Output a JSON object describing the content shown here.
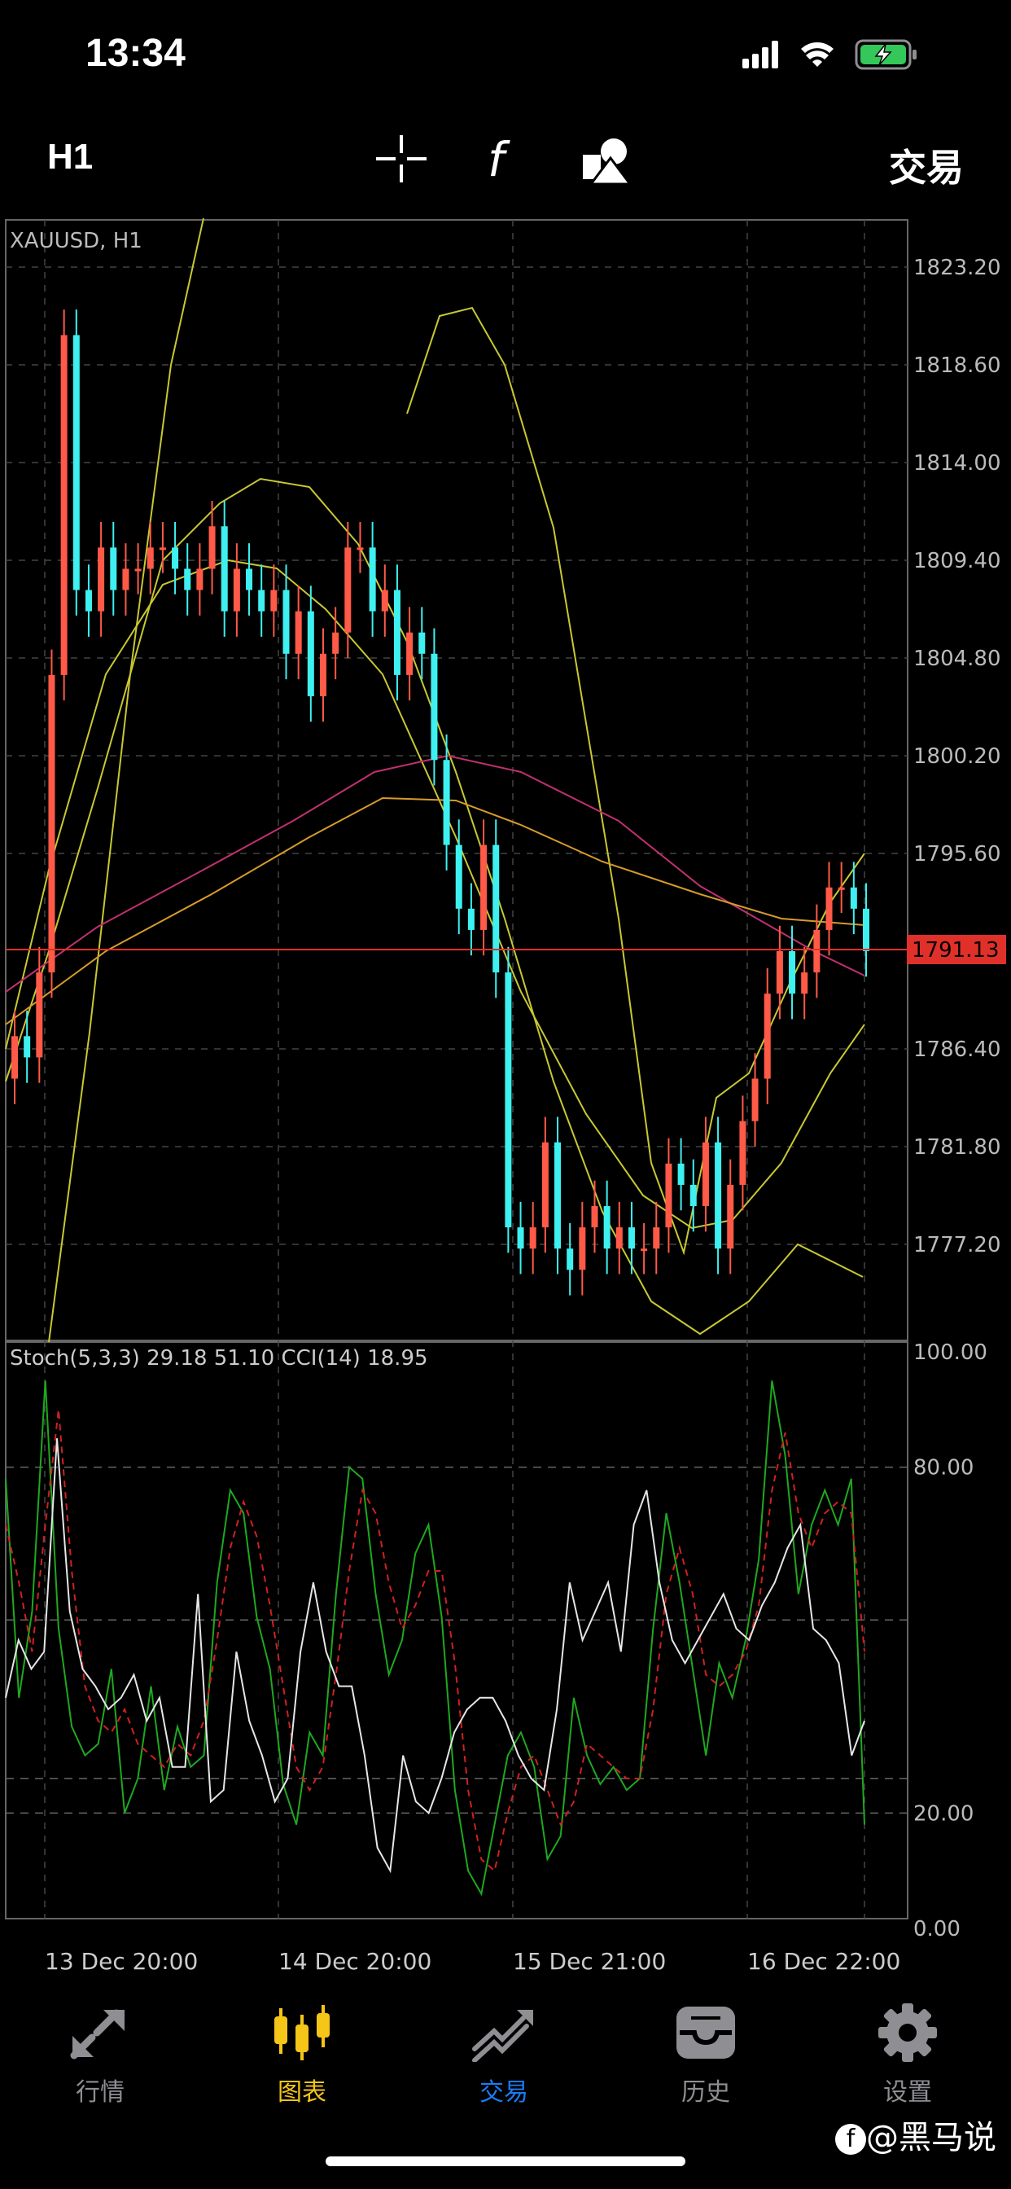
{
  "status": {
    "time": "13:34"
  },
  "toolbar": {
    "timeframe": "H1",
    "trade": "交易"
  },
  "chart": {
    "symbol": "XAUUSD, H1",
    "price_axis": [
      "1823.20",
      "1818.60",
      "1814.00",
      "1809.40",
      "1804.80",
      "1800.20",
      "1795.60",
      "1786.40",
      "1781.80",
      "1777.20"
    ],
    "current_price": "1791.13",
    "indicator_label": "Stoch(5,3,3) 29.18 51.10 CCI(14) 18.95",
    "indicator_axis": [
      "100.00",
      "80.00",
      "20.00",
      "0.00"
    ],
    "time_axis": [
      "13 Dec 20:00",
      "14 Dec 20:00",
      "15 Dec 21:00",
      "16 Dec 22:00"
    ],
    "colors": {
      "bull": "#ff5a47",
      "bear": "#3ef0f0",
      "bands": "#c8c832",
      "ma_pink": "#c0306f",
      "ma_orange": "#d89a2a",
      "price_line": "#e0302a"
    }
  },
  "tabs": [
    {
      "label": "行情",
      "icon": "quotes-icon"
    },
    {
      "label": "图表",
      "icon": "chart-candles-icon"
    },
    {
      "label": "交易",
      "icon": "trade-icon"
    },
    {
      "label": "历史",
      "icon": "history-icon"
    },
    {
      "label": "设置",
      "icon": "settings-gear-icon"
    }
  ],
  "watermark": "@黑马说"
}
